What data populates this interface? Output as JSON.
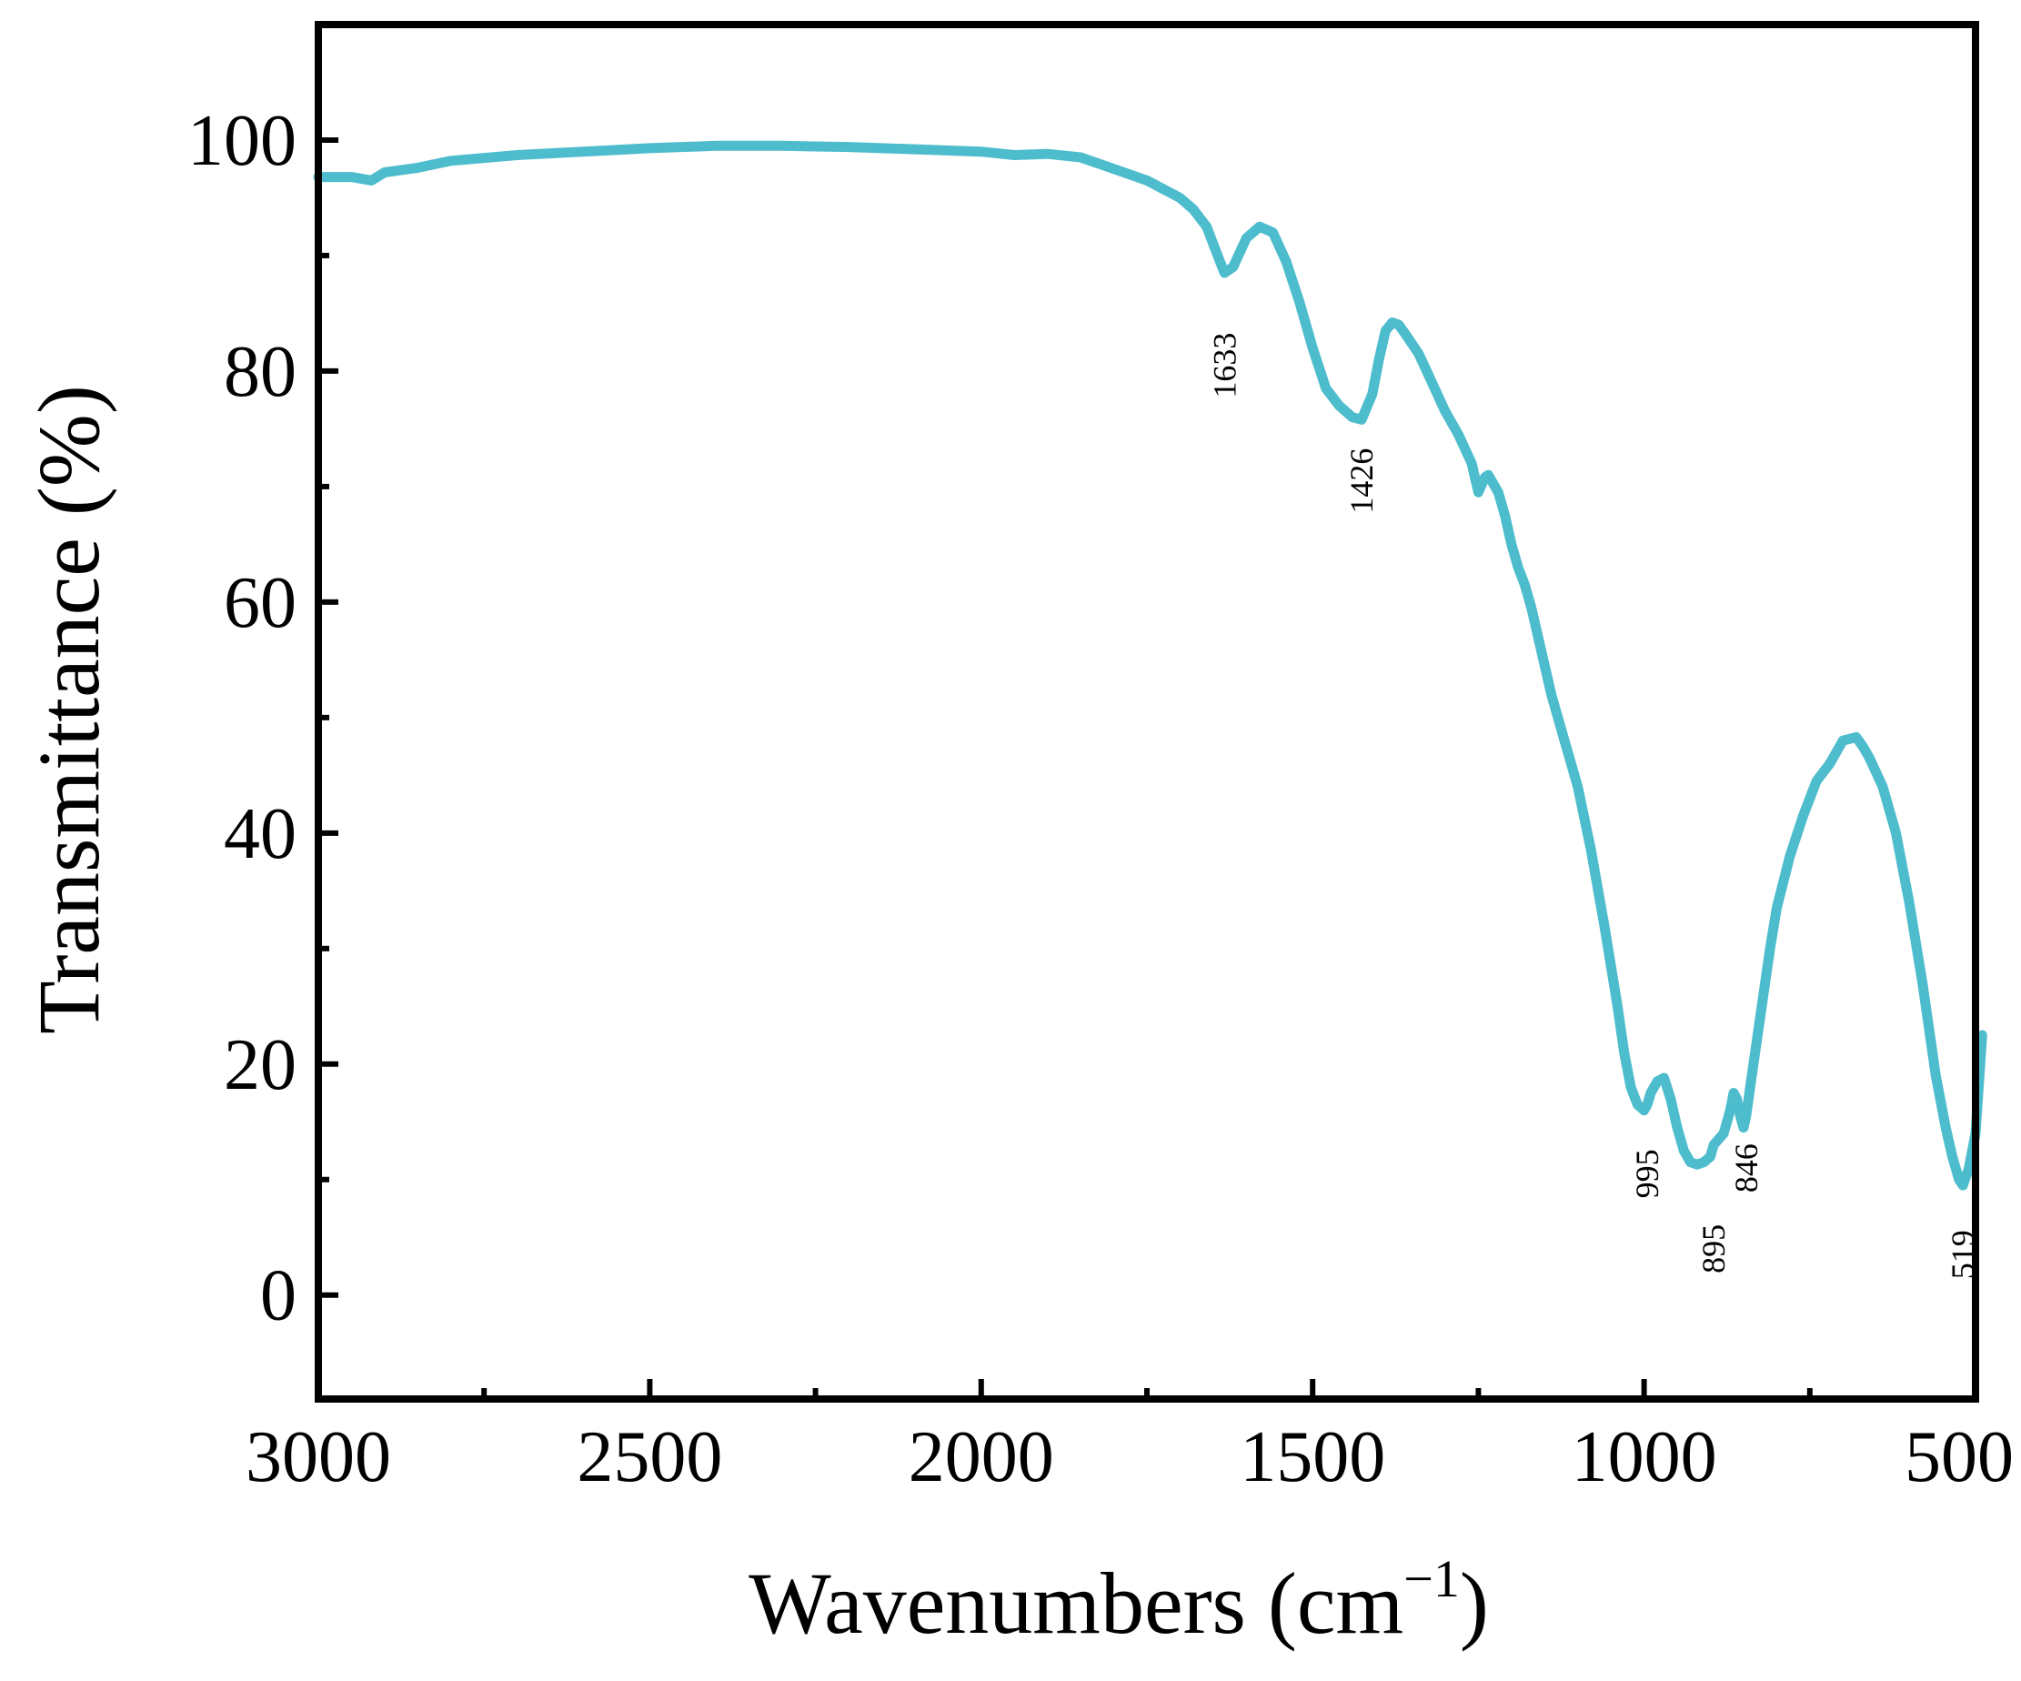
{
  "chart_data": {
    "type": "line",
    "title": "",
    "xlabel_main": "Wavenumbers (cm",
    "xlabel_sup": "−1",
    "xlabel_close": ")",
    "ylabel": "Transmittance (%)",
    "xlim": [
      3000,
      500
    ],
    "ylim": [
      -9,
      110
    ],
    "x_ticks": [
      3000,
      2500,
      2000,
      1500,
      1000,
      500
    ],
    "x_tick_labels": [
      "3000",
      "2500",
      "2000",
      "1500",
      "1000",
      "500"
    ],
    "y_ticks": [
      0,
      20,
      40,
      60,
      80,
      100
    ],
    "y_tick_labels": [
      "0",
      "20",
      "40",
      "60",
      "80",
      "100"
    ],
    "grid": false,
    "line_color": "#4dbccc",
    "series": [
      {
        "name": "FTIR spectrum",
        "x": [
          3000,
          2950,
          2920,
          2900,
          2850,
          2800,
          2700,
          2600,
          2500,
          2400,
          2300,
          2200,
          2100,
          2000,
          1950,
          1900,
          1850,
          1800,
          1750,
          1700,
          1680,
          1660,
          1640,
          1633,
          1620,
          1600,
          1580,
          1560,
          1540,
          1520,
          1500,
          1480,
          1460,
          1440,
          1426,
          1410,
          1400,
          1390,
          1380,
          1370,
          1360,
          1340,
          1320,
          1300,
          1280,
          1260,
          1250,
          1240,
          1235,
          1230,
          1225,
          1220,
          1210,
          1200,
          1190,
          1180,
          1170,
          1160,
          1150,
          1140,
          1120,
          1100,
          1080,
          1060,
          1040,
          1030,
          1020,
          1010,
          1000,
          995,
          990,
          980,
          970,
          960,
          950,
          940,
          930,
          920,
          910,
          900,
          895,
          880,
          870,
          865,
          860,
          855,
          850,
          846,
          840,
          830,
          820,
          810,
          800,
          780,
          760,
          740,
          720,
          700,
          680,
          670,
          660,
          640,
          620,
          600,
          580,
          560,
          545,
          535,
          525,
          519,
          510,
          500,
          490
        ],
        "y": [
          96.8,
          96.8,
          96.5,
          97.2,
          97.6,
          98.2,
          98.7,
          99.0,
          99.3,
          99.5,
          99.5,
          99.4,
          99.2,
          99.0,
          98.7,
          98.8,
          98.5,
          97.5,
          96.5,
          95.0,
          94.0,
          92.5,
          89.5,
          88.5,
          89.0,
          91.5,
          92.5,
          92.0,
          89.5,
          86.0,
          82.0,
          78.5,
          77.0,
          76.0,
          75.8,
          78.0,
          81.0,
          83.5,
          84.2,
          84.0,
          83.2,
          81.5,
          79.0,
          76.5,
          74.5,
          72.0,
          69.5,
          70.8,
          71.0,
          70.5,
          70.0,
          69.5,
          67.5,
          65.0,
          63.0,
          61.5,
          59.5,
          57.0,
          54.5,
          52.0,
          48.0,
          44.0,
          38.5,
          32.0,
          25.0,
          21.0,
          18.0,
          16.5,
          16.0,
          16.5,
          17.5,
          18.5,
          18.8,
          17.0,
          14.5,
          12.5,
          11.5,
          11.3,
          11.5,
          12.0,
          13.0,
          14.0,
          16.0,
          17.5,
          17.0,
          15.5,
          14.5,
          15.5,
          18.0,
          22.0,
          26.0,
          30.0,
          33.5,
          38.0,
          41.5,
          44.5,
          46.0,
          48.0,
          48.3,
          47.5,
          46.5,
          44.0,
          40.0,
          34.0,
          27.0,
          19.0,
          14.5,
          12.0,
          10.0,
          9.5,
          11.0,
          14.0,
          22.5
        ]
      }
    ],
    "annotations": [
      {
        "text": "1633",
        "x": 1633,
        "y": 80.5
      },
      {
        "text": "1426",
        "x": 1426,
        "y": 70.5
      },
      {
        "text": "995",
        "x": 995,
        "y": 10.5
      },
      {
        "text": "895",
        "x": 895,
        "y": 4.0
      },
      {
        "text": "846",
        "x": 846,
        "y": 11.0
      },
      {
        "text": "519",
        "x": 519,
        "y": 3.5
      }
    ]
  }
}
